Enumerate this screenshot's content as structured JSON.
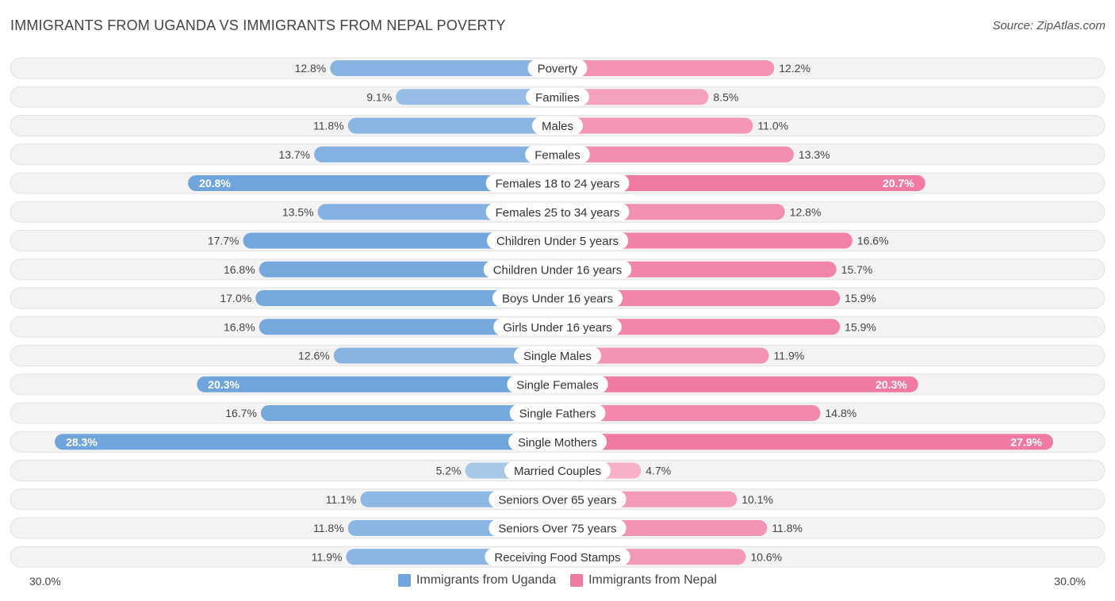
{
  "header": {
    "title": "IMMIGRANTS FROM UGANDA VS IMMIGRANTS FROM NEPAL POVERTY",
    "source": "Source: ZipAtlas.com"
  },
  "colors": {
    "left": "#6fa4dc",
    "right": "#f07aa0",
    "track": "#f1f1f1"
  },
  "chart_data": {
    "type": "bar",
    "title": "IMMIGRANTS FROM UGANDA VS IMMIGRANTS FROM NEPAL POVERTY",
    "orientation": "horizontal-diverging",
    "unit": "%",
    "xlim": [
      0,
      30
    ],
    "axis_labels": {
      "left": "30.0%",
      "right": "30.0%"
    },
    "legend_position": "bottom-center",
    "categories": [
      "Poverty",
      "Families",
      "Males",
      "Females",
      "Females 18 to 24 years",
      "Females 25 to 34 years",
      "Children Under 5 years",
      "Children Under 16 years",
      "Boys Under 16 years",
      "Girls Under 16 years",
      "Single Males",
      "Single Females",
      "Single Fathers",
      "Single Mothers",
      "Married Couples",
      "Seniors Over 65 years",
      "Seniors Over 75 years",
      "Receiving Food Stamps"
    ],
    "series": [
      {
        "name": "Immigrants from Uganda",
        "values": [
          12.8,
          9.1,
          11.8,
          13.7,
          20.8,
          13.5,
          17.7,
          16.8,
          17.0,
          16.8,
          12.6,
          20.3,
          16.7,
          28.3,
          5.2,
          11.1,
          11.8,
          11.9
        ],
        "labels": [
          "12.8%",
          "9.1%",
          "11.8%",
          "13.7%",
          "20.8%",
          "13.5%",
          "17.7%",
          "16.8%",
          "17.0%",
          "16.8%",
          "12.6%",
          "20.3%",
          "16.7%",
          "28.3%",
          "5.2%",
          "11.1%",
          "11.8%",
          "11.9%"
        ]
      },
      {
        "name": "Immigrants from Nepal",
        "values": [
          12.2,
          8.5,
          11.0,
          13.3,
          20.7,
          12.8,
          16.6,
          15.7,
          15.9,
          15.9,
          11.9,
          20.3,
          14.8,
          27.9,
          4.7,
          10.1,
          11.8,
          10.6
        ],
        "labels": [
          "12.2%",
          "8.5%",
          "11.0%",
          "13.3%",
          "20.7%",
          "12.8%",
          "16.6%",
          "15.7%",
          "15.9%",
          "15.9%",
          "11.9%",
          "20.3%",
          "14.8%",
          "27.9%",
          "4.7%",
          "10.1%",
          "11.8%",
          "10.6%"
        ]
      }
    ]
  }
}
